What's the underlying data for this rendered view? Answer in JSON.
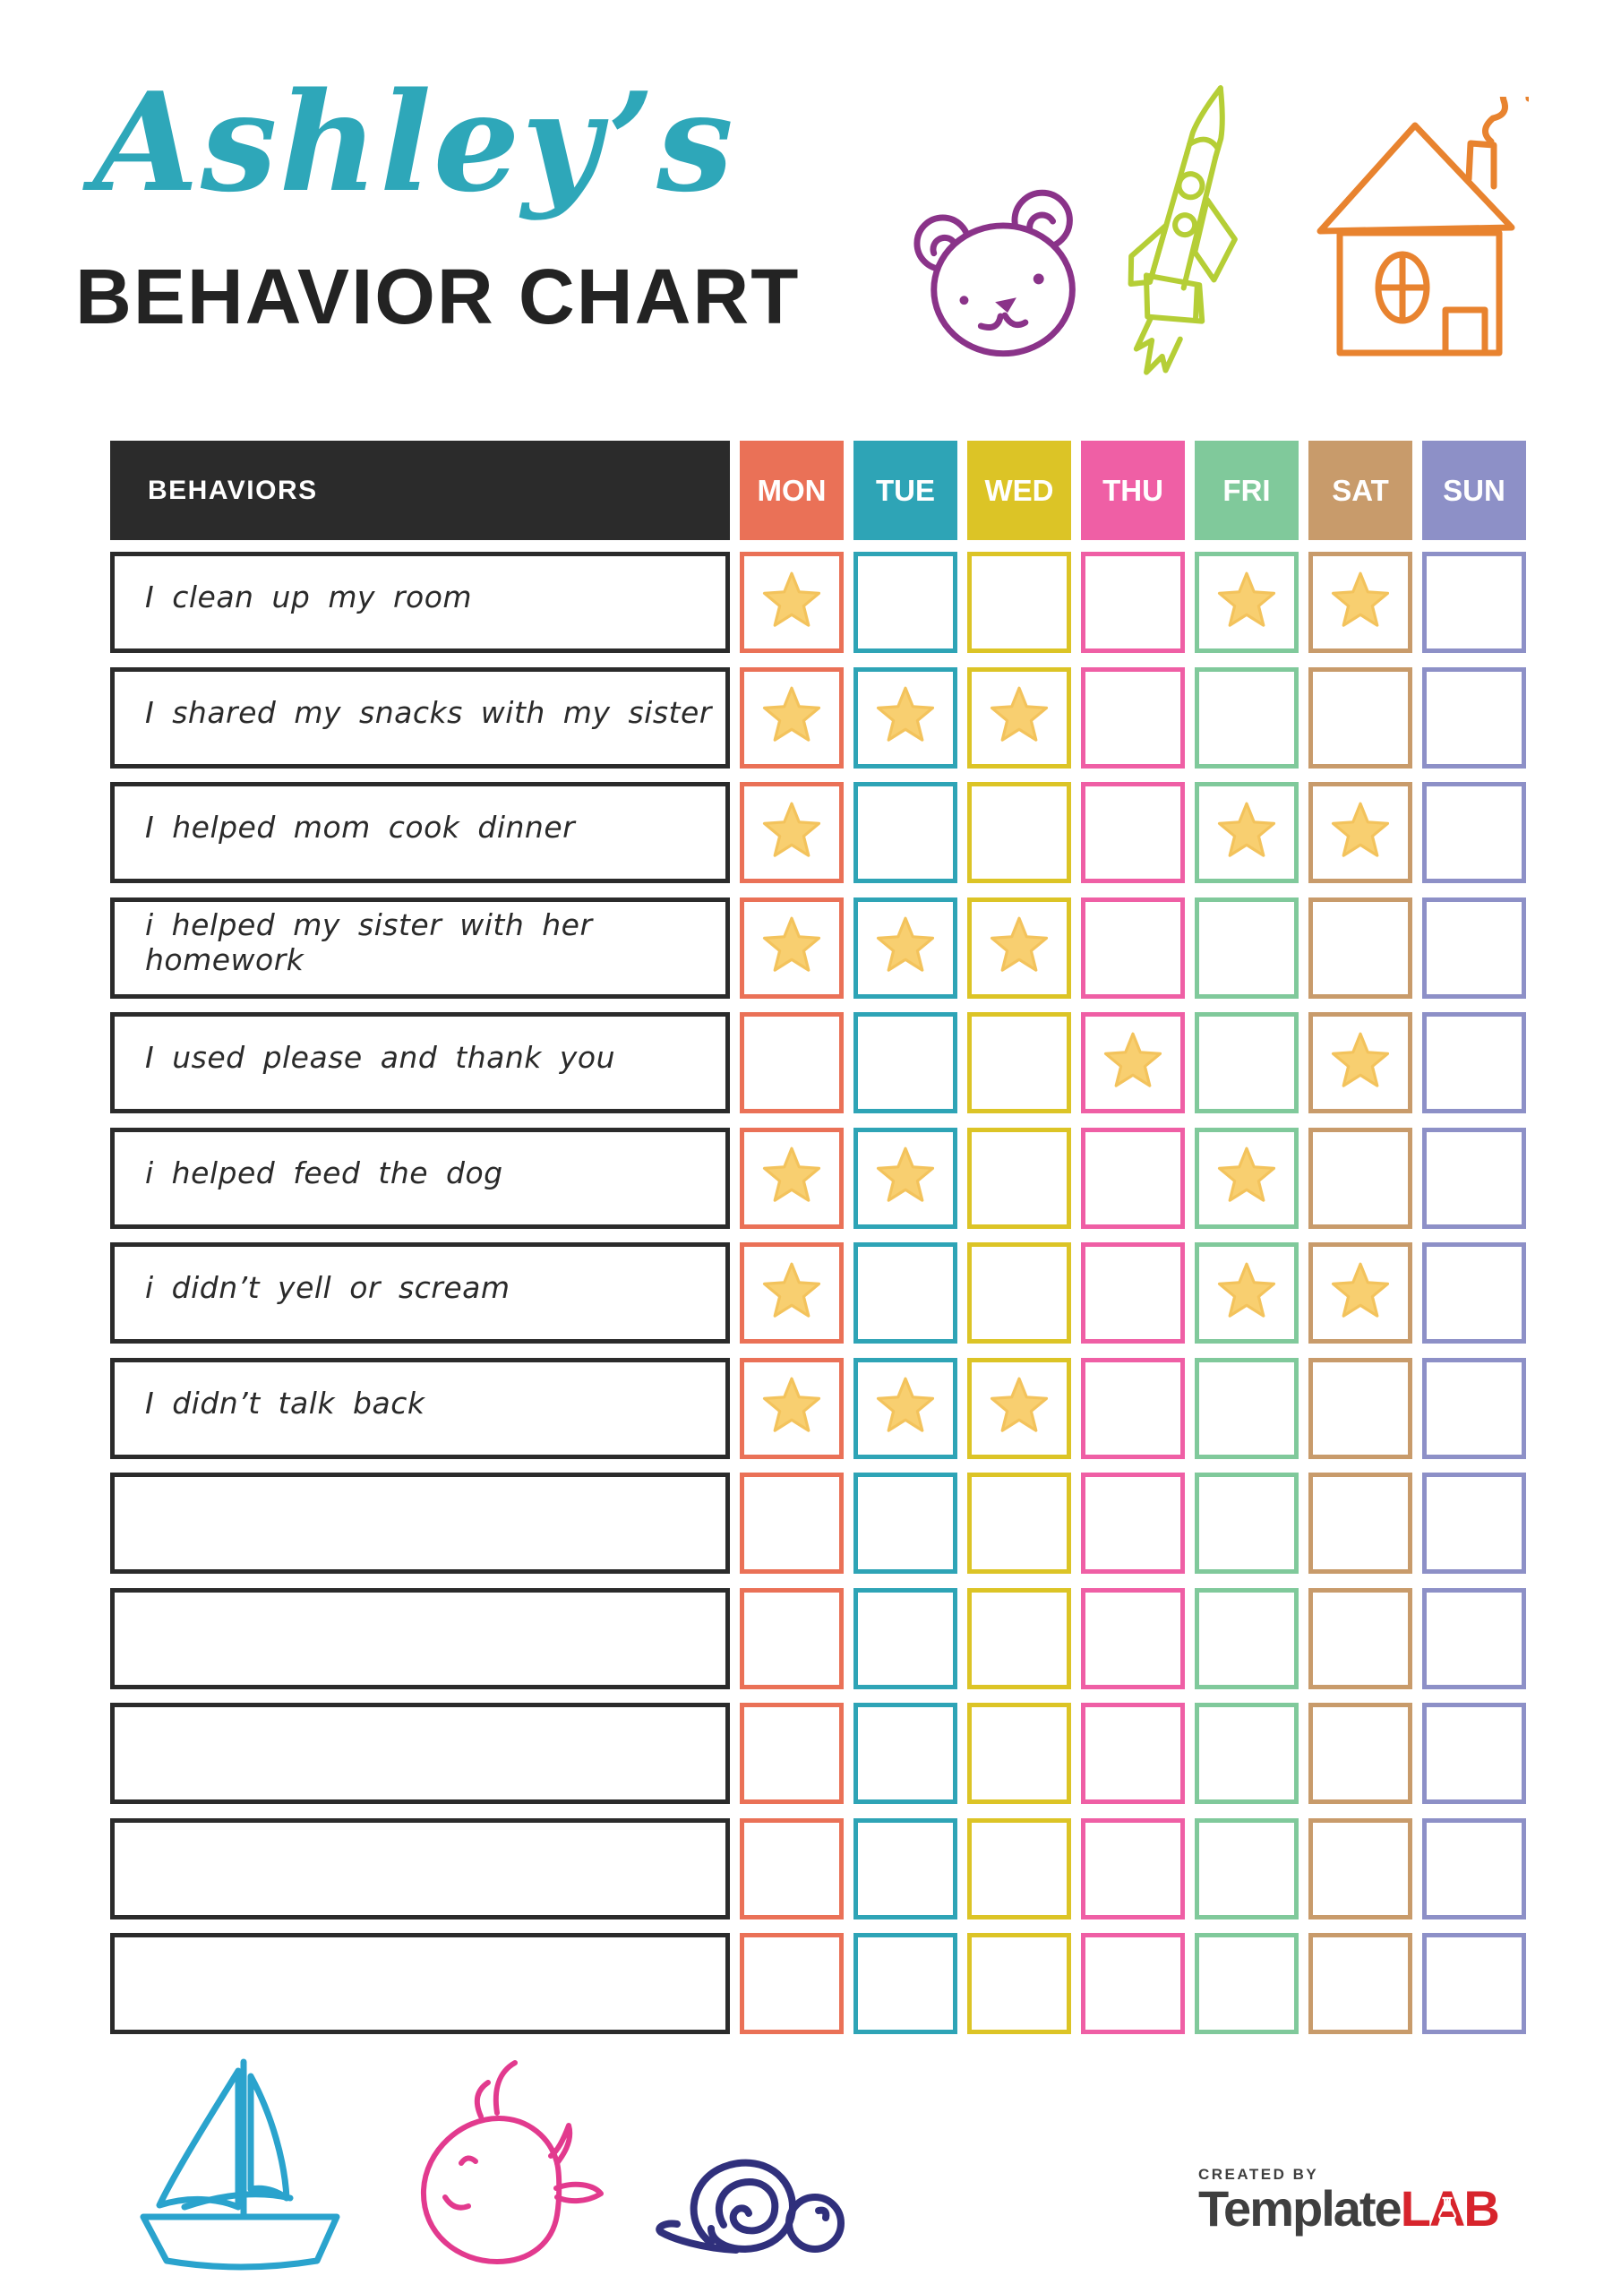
{
  "title": {
    "script": "Ashley’s",
    "heading": "BEHAVIOR CHART"
  },
  "table": {
    "behaviors_header": "BEHAVIORS",
    "days": [
      {
        "label": "MON",
        "color": "#EA7157"
      },
      {
        "label": "TUE",
        "color": "#2EA4B6"
      },
      {
        "label": "WED",
        "color": "#DCC426"
      },
      {
        "label": "THU",
        "color": "#EF5FA5"
      },
      {
        "label": "FRI",
        "color": "#80C99B"
      },
      {
        "label": "SAT",
        "color": "#C89B6B"
      },
      {
        "label": "SUN",
        "color": "#8D90C7"
      }
    ],
    "rows": [
      {
        "label": "I clean up my room",
        "stars": [
          1,
          0,
          0,
          0,
          1,
          1,
          0
        ]
      },
      {
        "label": "I shared my snacks with my sister",
        "stars": [
          1,
          1,
          1,
          0,
          0,
          0,
          0
        ]
      },
      {
        "label": "I helped mom cook dinner",
        "stars": [
          1,
          0,
          0,
          0,
          1,
          1,
          0
        ]
      },
      {
        "label": "i helped my sister with her homework",
        "stars": [
          1,
          1,
          1,
          0,
          0,
          0,
          0
        ]
      },
      {
        "label": "I used please and thank you",
        "stars": [
          0,
          0,
          0,
          1,
          0,
          1,
          0
        ]
      },
      {
        "label": "i helped feed the dog",
        "stars": [
          1,
          1,
          0,
          0,
          1,
          0,
          0
        ]
      },
      {
        "label": "i didn’t yell or scream",
        "stars": [
          1,
          0,
          0,
          0,
          1,
          1,
          0
        ]
      },
      {
        "label": "I didn’t talk back",
        "stars": [
          1,
          1,
          1,
          0,
          0,
          0,
          0
        ]
      },
      {
        "label": "",
        "stars": [
          0,
          0,
          0,
          0,
          0,
          0,
          0
        ]
      },
      {
        "label": "",
        "stars": [
          0,
          0,
          0,
          0,
          0,
          0,
          0
        ]
      },
      {
        "label": "",
        "stars": [
          0,
          0,
          0,
          0,
          0,
          0,
          0
        ]
      },
      {
        "label": "",
        "stars": [
          0,
          0,
          0,
          0,
          0,
          0,
          0
        ]
      },
      {
        "label": "",
        "stars": [
          0,
          0,
          0,
          0,
          0,
          0,
          0
        ]
      }
    ]
  },
  "doodles": {
    "top": [
      "teddy-bear-icon",
      "rocket-icon",
      "house-icon"
    ],
    "bottom": [
      "sailboat-icon",
      "whale-icon",
      "snail-icon"
    ]
  },
  "footer": {
    "created_by": "CREATED BY",
    "brand_dark": "Template",
    "brand_red": "LAB"
  },
  "colors": {
    "title_script": "#2EA7B9",
    "heading_text": "#232323",
    "header_bg": "#2B2B2B",
    "row_border": "#2B2B2B",
    "star_fill": "#F8CF70",
    "star_stroke": "#F3C35C",
    "logo_dark": "#3F3F3F",
    "logo_red": "#D7242C",
    "doodle_bear": "#8A3389",
    "doodle_rocket": "#B5CE36",
    "doodle_house": "#E8832F",
    "doodle_boat": "#2AA3CD",
    "doodle_whale": "#E23A8E",
    "doodle_snail": "#30307C"
  }
}
